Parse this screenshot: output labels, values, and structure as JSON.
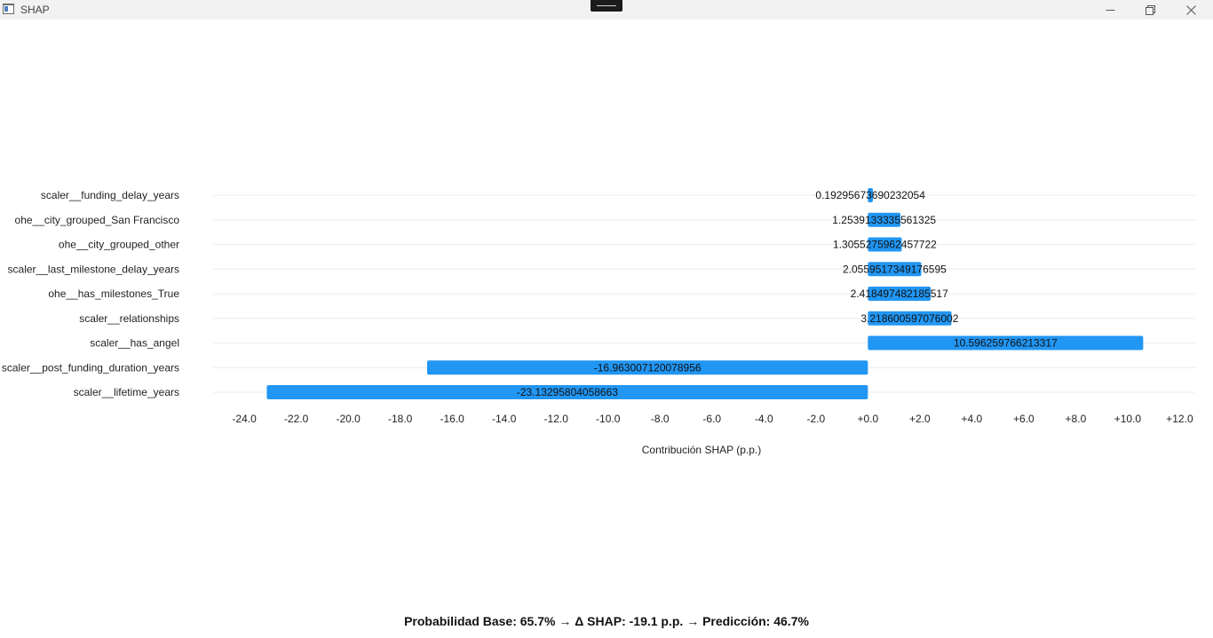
{
  "window": {
    "title": "SHAP",
    "icon": "window-app-icon",
    "controls": [
      "minimize-icon",
      "restore-icon",
      "close-icon"
    ]
  },
  "chart_data": {
    "type": "bar",
    "orientation": "horizontal",
    "categories": [
      "scaler__funding_delay_years",
      "ohe__city_grouped_San Francisco",
      "ohe__city_grouped_other",
      "scaler__last_milestone_delay_years",
      "ohe__has_milestones_True",
      "scaler__relationships",
      "scaler__has_angel",
      "scaler__post_funding_duration_years",
      "scaler__lifetime_years"
    ],
    "values": [
      0.19295673690232054,
      1.2539133335561325,
      1.3055275962457722,
      2.0559517349176595,
      2.418497482185517,
      3.218600597076002,
      10.596259766213317,
      -16.963007120078956,
      -23.13295804058663
    ],
    "value_labels": [
      "0.19295673690232054",
      "1.2539133335561325",
      "1.3055275962457722",
      "2.0559517349176595",
      "2.418497482185517",
      "3.218600597076002",
      "10.596259766213317",
      "-16.963007120078956",
      "-23.13295804058663"
    ],
    "xlabel": "Contribución SHAP (p.p.)",
    "xlim": [
      -25.2,
      12.6
    ],
    "xticks": [
      -24,
      -22,
      -20,
      -18,
      -16,
      -14,
      -12,
      -10,
      -8,
      -6,
      -4,
      -2,
      0,
      2,
      4,
      6,
      8,
      10,
      12
    ],
    "xtick_labels": [
      "-24.0",
      "-22.0",
      "-20.0",
      "-18.0",
      "-16.0",
      "-14.0",
      "-12.0",
      "-10.0",
      "-8.0",
      "-6.0",
      "-4.0",
      "-2.0",
      "+0.0",
      "+2.0",
      "+4.0",
      "+6.0",
      "+8.0",
      "+10.0",
      "+12.0"
    ],
    "grid": "horizontal",
    "bar_color": "#2196f3"
  },
  "summary": {
    "text": "Probabilidad Base: 65.7%  →  Δ SHAP: -19.1 p.p.  →  Predicción: 46.7%"
  }
}
